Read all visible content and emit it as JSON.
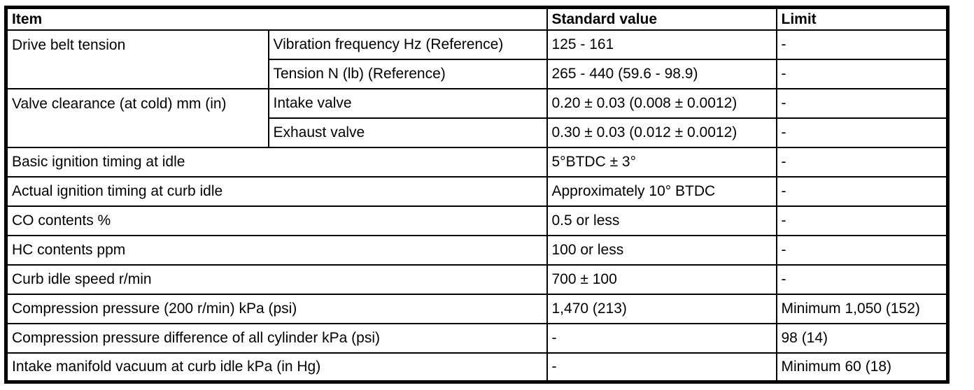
{
  "table": {
    "title_semantics": "engine-adjustment-specifications",
    "text_color": "#000000",
    "border_color": "#000000",
    "background_color": "#ffffff",
    "header": {
      "item": "Item",
      "standard_value": "Standard value",
      "limit": "Limit"
    },
    "rows": [
      {
        "item": "Drive belt tension",
        "sub": "Vibration frequency Hz (Reference)",
        "standard": "125 - 161",
        "limit": "-"
      },
      {
        "sub": "Tension N (lb) (Reference)",
        "standard": "265 - 440 (59.6 - 98.9)",
        "limit": "-"
      },
      {
        "item": "Valve clearance (at cold) mm (in)",
        "sub": "Intake valve",
        "standard": "0.20 ± 0.03 (0.008 ± 0.0012)",
        "limit": "-"
      },
      {
        "sub": "Exhaust valve",
        "standard": "0.30 ± 0.03 (0.012 ± 0.0012)",
        "limit": "-"
      },
      {
        "item": "Basic ignition timing at idle",
        "standard": "5°BTDC ± 3°",
        "limit": "-"
      },
      {
        "item": "Actual ignition timing at curb idle",
        "standard": "Approximately 10° BTDC",
        "limit": "-"
      },
      {
        "item": "CO contents %",
        "standard": "0.5 or less",
        "limit": "-"
      },
      {
        "item": "HC contents ppm",
        "standard": "100 or less",
        "limit": "-"
      },
      {
        "item": "Curb idle speed r/min",
        "standard": "700 ± 100",
        "limit": "-"
      },
      {
        "item": "Compression pressure (200 r/min) kPa (psi)",
        "standard": "1,470 (213)",
        "limit": "Minimum 1,050 (152)"
      },
      {
        "item": "Compression pressure difference of all cylinder kPa (psi)",
        "standard": "-",
        "limit": "98 (14)"
      },
      {
        "item": "Intake manifold vacuum at curb idle kPa (in Hg)",
        "standard": "-",
        "limit": "Minimum 60 (18)"
      }
    ]
  }
}
